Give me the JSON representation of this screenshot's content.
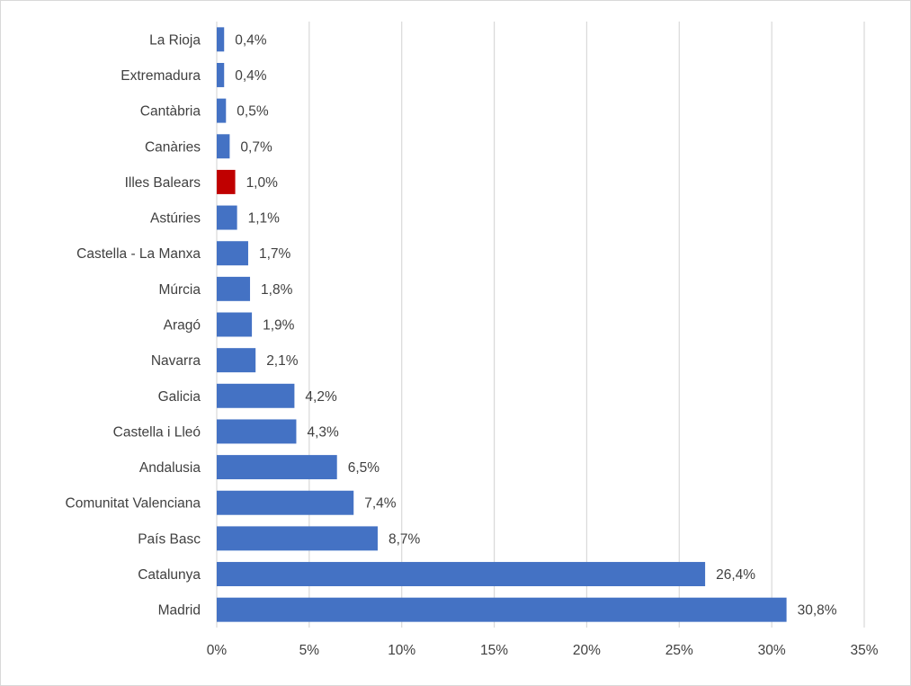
{
  "chart_data": {
    "type": "bar",
    "orientation": "horizontal",
    "title": "",
    "xlabel": "",
    "ylabel": "",
    "categories": [
      "La Rioja",
      "Extremadura",
      "Cantàbria",
      "Canàries",
      "Illes Balears",
      "Astúries",
      "Castella - La Manxa",
      "Múrcia",
      "Aragó",
      "Navarra",
      "Galicia",
      "Castella i Lleó",
      "Andalusia",
      "Comunitat Valenciana",
      "País Basc",
      "Catalunya",
      "Madrid"
    ],
    "values": [
      0.4,
      0.4,
      0.5,
      0.7,
      1.0,
      1.1,
      1.7,
      1.8,
      1.9,
      2.1,
      4.2,
      4.3,
      6.5,
      7.4,
      8.7,
      26.4,
      30.8
    ],
    "value_labels": [
      "0,4%",
      "0,4%",
      "0,5%",
      "0,7%",
      "1,0%",
      "1,1%",
      "1,7%",
      "1,8%",
      "1,9%",
      "2,1%",
      "4,2%",
      "4,3%",
      "6,5%",
      "7,4%",
      "8,7%",
      "26,4%",
      "30,8%"
    ],
    "xlim": [
      0,
      35
    ],
    "x_ticks": [
      0,
      5,
      10,
      15,
      20,
      25,
      30,
      35
    ],
    "x_tick_labels": [
      "0%",
      "5%",
      "10%",
      "15%",
      "20%",
      "25%",
      "30%",
      "35%"
    ],
    "grid": "vertical",
    "legend": "none",
    "colors": {
      "bar": "#4472c4",
      "highlight": "#c00000",
      "grid": "#d9d9d9",
      "text": "#404040"
    },
    "highlight_category": "Illes Balears"
  }
}
